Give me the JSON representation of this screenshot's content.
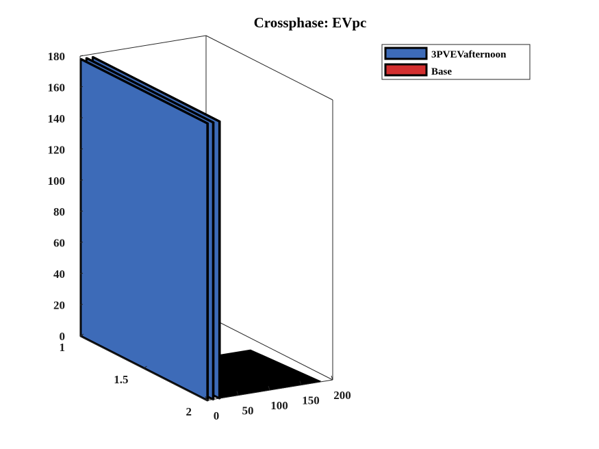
{
  "chart_data": {
    "type": "bar",
    "subtype": "3d-bar",
    "title": "Crossphase: EVpc",
    "xlabel": "",
    "ylabel": "",
    "zlabel": "",
    "x_ticks": [
      "0",
      "50",
      "100",
      "150",
      "200"
    ],
    "y_ticks": [
      "1",
      "1.5",
      "2"
    ],
    "z_ticks": [
      "0",
      "20",
      "40",
      "60",
      "80",
      "100",
      "120",
      "140",
      "160",
      "180"
    ],
    "xlim": [
      0,
      200
    ],
    "ylim": [
      1,
      2
    ],
    "zlim": [
      0,
      180
    ],
    "grid": false,
    "legend": {
      "position": "top-right",
      "entries": [
        {
          "label": "3PVEVafternoon",
          "color": "#3d6bb8"
        },
        {
          "label": "Base",
          "color": "#d32f2f"
        }
      ]
    },
    "series": [
      {
        "name": "3PVEVafternoon",
        "color": "#3d6bb8",
        "points": [
          {
            "x": 1,
            "y": 2,
            "z": 178
          },
          {
            "x": 10,
            "y": 2,
            "z": 178
          },
          {
            "x": 20,
            "y": 2,
            "z": 178
          }
        ],
        "remaining_values": "approximately 0 for x = 21..180"
      },
      {
        "name": "Base",
        "color": "#d32f2f",
        "points": []
      }
    ],
    "floor_color": "#000000"
  }
}
